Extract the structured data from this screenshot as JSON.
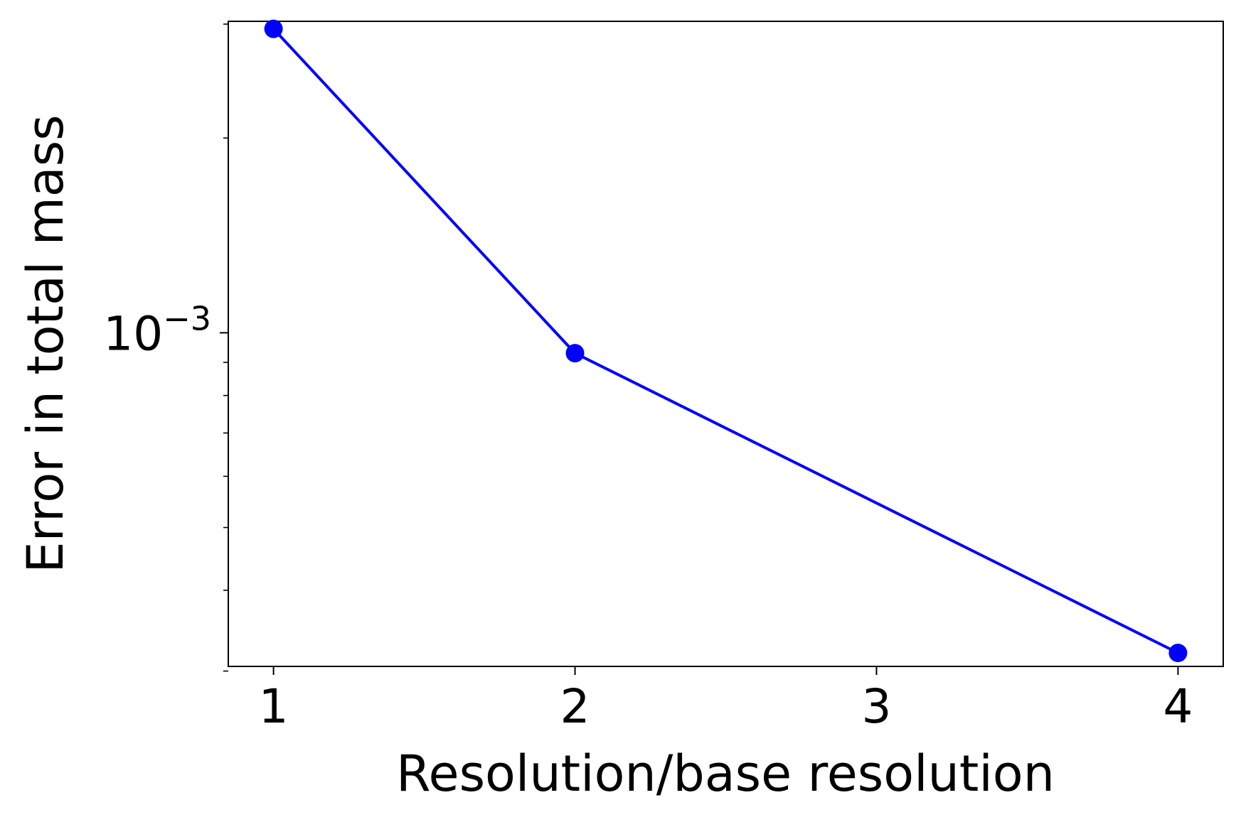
{
  "chart_data": {
    "type": "line",
    "title": "",
    "xlabel": "Resolution/base resolution",
    "ylabel": "Error in total mass",
    "yscale": "log",
    "x": [
      1,
      2,
      3,
      4
    ],
    "xticks": [
      "1",
      "2",
      "3",
      "4"
    ],
    "xlim": [
      0.85,
      4.15
    ],
    "ylim": [
      0.000305,
      0.00303
    ],
    "yticks": [
      {
        "value": 0.001,
        "base": "10",
        "exponent": "−3"
      }
    ],
    "y_minor_ticks": [
      0.0003,
      0.0004,
      0.0005,
      0.0006,
      0.0007,
      0.0008,
      0.0009,
      0.002,
      0.003
    ],
    "grid": false,
    "legend": "none",
    "series": [
      {
        "x": [
          1,
          2,
          4
        ],
        "values": [
          0.00295,
          0.00093,
          0.00032
        ],
        "color": "#0000ff",
        "marker": "circle"
      }
    ]
  }
}
